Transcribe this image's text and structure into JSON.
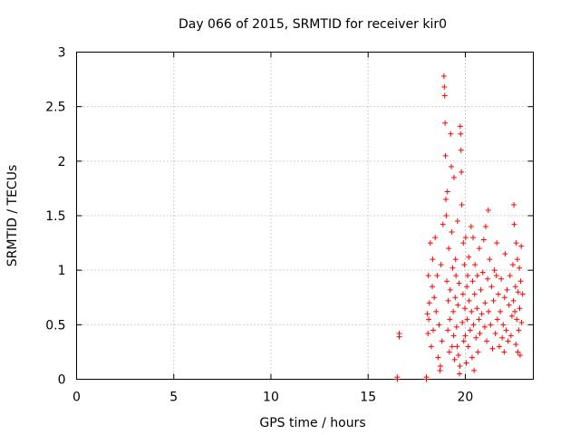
{
  "chart_data": {
    "type": "scatter",
    "title": "Day 066 of 2015, SRMTID for receiver kir0",
    "xlabel": "GPS time / hours",
    "ylabel": "SRMTID / TECUs",
    "xlim": [
      0,
      23.5
    ],
    "ylim": [
      0,
      3
    ],
    "grid": true,
    "legend": "none",
    "marker": "plus",
    "marker_color": "#ff0000",
    "xticks": [
      {
        "value": 0,
        "label": "0"
      },
      {
        "value": 5,
        "label": "5"
      },
      {
        "value": 10,
        "label": "10"
      },
      {
        "value": 15,
        "label": "15"
      },
      {
        "value": 20,
        "label": "20"
      }
    ],
    "yticks": [
      {
        "value": 0,
        "label": "0"
      },
      {
        "value": 0.5,
        "label": "0.5"
      },
      {
        "value": 1,
        "label": "1"
      },
      {
        "value": 1.5,
        "label": "1.5"
      },
      {
        "value": 2,
        "label": "2"
      },
      {
        "value": 2.5,
        "label": "2.5"
      },
      {
        "value": 3,
        "label": "3"
      }
    ],
    "series": [
      {
        "name": "SRMTID",
        "points": [
          [
            16.5,
            0.0
          ],
          [
            16.5,
            0.02
          ],
          [
            16.6,
            0.42
          ],
          [
            16.6,
            0.39
          ],
          [
            18.0,
            0.0
          ],
          [
            18.0,
            0.02
          ],
          [
            18.05,
            0.6
          ],
          [
            18.08,
            0.42
          ],
          [
            18.1,
            0.95
          ],
          [
            18.12,
            0.55
          ],
          [
            18.15,
            0.7
          ],
          [
            18.2,
            1.25
          ],
          [
            18.25,
            0.3
          ],
          [
            18.3,
            0.85
          ],
          [
            18.32,
            1.1
          ],
          [
            18.35,
            0.45
          ],
          [
            18.4,
            0.75
          ],
          [
            18.45,
            1.3
          ],
          [
            18.5,
            0.62
          ],
          [
            18.55,
            0.95
          ],
          [
            18.6,
            0.2
          ],
          [
            18.65,
            0.5
          ],
          [
            18.7,
            0.08
          ],
          [
            18.72,
            0.12
          ],
          [
            18.75,
            1.05
          ],
          [
            18.8,
            0.35
          ],
          [
            18.85,
            1.42
          ],
          [
            18.9,
            2.78
          ],
          [
            18.92,
            2.68
          ],
          [
            18.94,
            2.6
          ],
          [
            18.96,
            2.35
          ],
          [
            18.98,
            2.05
          ],
          [
            19.0,
            1.65
          ],
          [
            19.02,
            1.5
          ],
          [
            19.05,
            0.9
          ],
          [
            19.08,
            1.72
          ],
          [
            19.1,
            0.45
          ],
          [
            19.12,
            0.72
          ],
          [
            19.15,
            1.2
          ],
          [
            19.18,
            0.25
          ],
          [
            19.2,
            0.55
          ],
          [
            19.22,
            0.82
          ],
          [
            19.25,
            2.25
          ],
          [
            19.28,
            1.95
          ],
          [
            19.3,
            1.35
          ],
          [
            19.32,
            0.3
          ],
          [
            19.35,
            1.02
          ],
          [
            19.38,
            0.62
          ],
          [
            19.4,
            0.4
          ],
          [
            19.42,
            1.85
          ],
          [
            19.45,
            0.18
          ],
          [
            19.48,
            0.75
          ],
          [
            19.5,
            1.1
          ],
          [
            19.52,
            0.95
          ],
          [
            19.55,
            0.48
          ],
          [
            19.58,
            0.3
          ],
          [
            19.6,
            1.45
          ],
          [
            19.62,
            0.68
          ],
          [
            19.65,
            0.22
          ],
          [
            19.68,
            0.88
          ],
          [
            19.7,
            0.05
          ],
          [
            19.72,
            0.12
          ],
          [
            19.74,
            2.32
          ],
          [
            19.76,
            2.25
          ],
          [
            19.78,
            2.1
          ],
          [
            19.8,
            1.9
          ],
          [
            19.82,
            1.6
          ],
          [
            19.85,
            0.52
          ],
          [
            19.88,
            0.78
          ],
          [
            19.9,
            1.25
          ],
          [
            19.92,
            0.35
          ],
          [
            19.95,
            1.05
          ],
          [
            19.98,
            0.65
          ],
          [
            20.0,
            0.4
          ],
          [
            20.02,
            1.3
          ],
          [
            20.05,
            0.15
          ],
          [
            20.08,
            0.85
          ],
          [
            20.1,
            0.55
          ],
          [
            20.12,
            0.95
          ],
          [
            20.15,
            0.3
          ],
          [
            20.18,
            1.12
          ],
          [
            20.2,
            0.72
          ],
          [
            20.25,
            0.45
          ],
          [
            20.3,
            1.4
          ],
          [
            20.32,
            0.62
          ],
          [
            20.35,
            0.2
          ],
          [
            20.38,
            0.9
          ],
          [
            20.4,
            1.3
          ],
          [
            20.42,
            0.5
          ],
          [
            20.45,
            0.08
          ],
          [
            20.48,
            0.78
          ],
          [
            20.5,
            1.05
          ],
          [
            20.55,
            0.38
          ],
          [
            20.6,
            0.65
          ],
          [
            20.62,
            0.95
          ],
          [
            20.65,
            0.25
          ],
          [
            20.7,
            0.55
          ],
          [
            20.72,
            1.2
          ],
          [
            20.75,
            0.42
          ],
          [
            20.8,
            0.82
          ],
          [
            20.85,
            0.6
          ],
          [
            20.9,
            0.98
          ],
          [
            20.95,
            1.28
          ],
          [
            21.0,
            0.48
          ],
          [
            21.02,
            0.7
          ],
          [
            21.05,
            1.4
          ],
          [
            21.1,
            0.35
          ],
          [
            21.15,
            0.92
          ],
          [
            21.18,
            1.55
          ],
          [
            21.2,
            0.62
          ],
          [
            21.25,
            1.1
          ],
          [
            21.3,
            0.5
          ],
          [
            21.35,
            0.85
          ],
          [
            21.4,
            0.28
          ],
          [
            21.45,
            0.72
          ],
          [
            21.5,
            1.0
          ],
          [
            21.55,
            0.42
          ],
          [
            21.6,
            0.95
          ],
          [
            21.62,
            1.25
          ],
          [
            21.65,
            0.55
          ],
          [
            21.7,
            0.78
          ],
          [
            21.75,
            0.3
          ],
          [
            21.8,
            0.62
          ],
          [
            21.85,
            0.92
          ],
          [
            21.9,
            0.38
          ],
          [
            21.95,
            0.5
          ],
          [
            22.0,
            0.25
          ],
          [
            22.02,
            0.75
          ],
          [
            22.05,
            1.15
          ],
          [
            22.1,
            0.45
          ],
          [
            22.15,
            0.82
          ],
          [
            22.2,
            0.35
          ],
          [
            22.25,
            0.68
          ],
          [
            22.3,
            0.95
          ],
          [
            22.35,
            0.4
          ],
          [
            22.4,
            0.58
          ],
          [
            22.45,
            1.05
          ],
          [
            22.48,
            0.72
          ],
          [
            22.5,
            1.6
          ],
          [
            22.52,
            1.42
          ],
          [
            22.55,
            0.62
          ],
          [
            22.58,
            0.85
          ],
          [
            22.6,
            0.32
          ],
          [
            22.62,
            1.25
          ],
          [
            22.65,
            0.55
          ],
          [
            22.68,
            1.1
          ],
          [
            22.7,
            0.25
          ],
          [
            22.72,
            0.8
          ],
          [
            22.75,
            0.45
          ],
          [
            22.78,
            1.02
          ],
          [
            22.8,
            0.65
          ],
          [
            22.82,
            0.22
          ],
          [
            22.85,
            0.9
          ],
          [
            22.88,
            1.22
          ],
          [
            22.9,
            0.52
          ],
          [
            22.95,
            0.78
          ]
        ]
      }
    ]
  }
}
